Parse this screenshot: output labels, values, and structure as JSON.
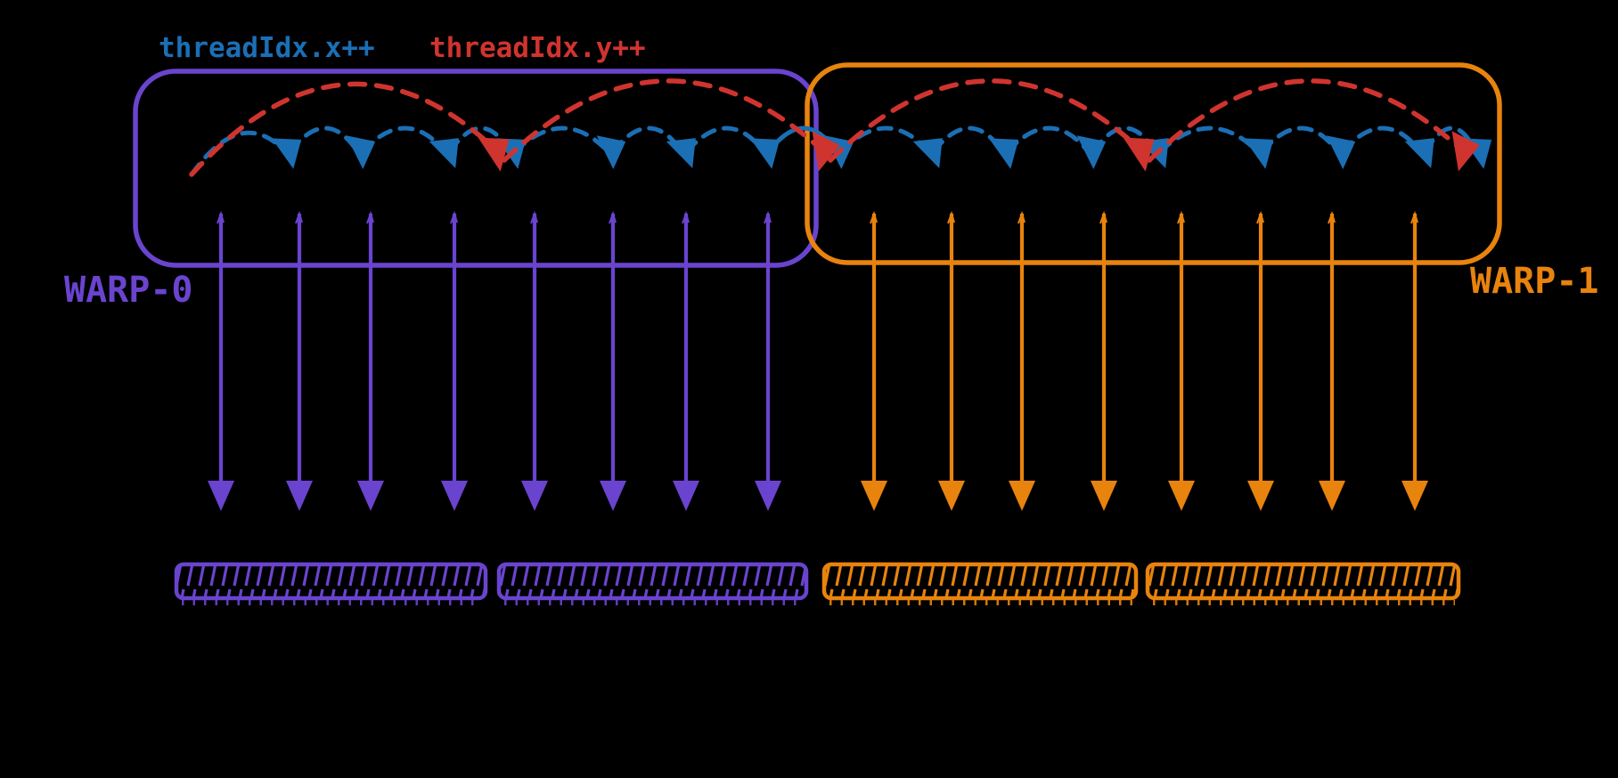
{
  "canvas": {
    "background": "#000000"
  },
  "labels": {
    "thread_x": {
      "text": "threadIdx.x++",
      "color": "#1b6fb5"
    },
    "thread_y": {
      "text": "threadIdx.y++",
      "color": "#d0342f"
    }
  },
  "warps": [
    {
      "label": "WARP-0",
      "color": "#6a44cf",
      "thread_count": 8
    },
    {
      "label": "WARP-1",
      "color": "#e8830e",
      "thread_count": 8
    }
  ],
  "traversal": {
    "x_hop_color": "#1b6fb5",
    "x_hop_count": 16,
    "y_jump_color": "#d0342f",
    "y_jump_count": 4,
    "threads_per_row": 4
  },
  "memory_bars": [
    {
      "owner": "WARP-0",
      "color": "#6a44cf"
    },
    {
      "owner": "WARP-0",
      "color": "#6a44cf"
    },
    {
      "owner": "WARP-1",
      "color": "#e8830e"
    },
    {
      "owner": "WARP-1",
      "color": "#e8830e"
    }
  ]
}
